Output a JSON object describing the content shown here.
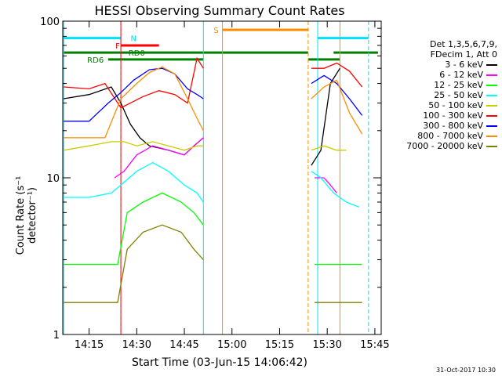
{
  "chart_data": {
    "type": "line",
    "title": "HESSI Observing Summary Count Rates",
    "xlabel": "Start Time (03-Jun-15 14:06:42)",
    "ylabel": "Count Rate (s⁻¹ detector⁻¹)",
    "yscale": "log",
    "ylim": [
      1,
      100
    ],
    "xlim": [
      "14:06:42",
      "15:47"
    ],
    "x_ticks": [
      "14:15",
      "14:30",
      "14:45",
      "15:00",
      "15:15",
      "15:30",
      "15:45"
    ],
    "y_tick_labels": [
      "100",
      "10",
      "1"
    ],
    "legend_header": [
      "Det 1,3,5,6,7,9,",
      "FDecim 1, Att 0"
    ],
    "legend_position": "right",
    "datestamp": "31-Oct-2017 10:30",
    "series": [
      {
        "name": "3 - 6 keV",
        "color": "#000000",
        "segments": [
          [
            [
              "14:07",
              32
            ],
            [
              "14:15",
              34
            ],
            [
              "14:22",
              38
            ],
            [
              "14:25",
              30
            ],
            [
              "14:28",
              22
            ],
            [
              "14:31",
              18
            ],
            [
              "14:34",
              16
            ],
            [
              "14:40",
              15
            ],
            [
              "14:45",
              14
            ],
            [
              "14:48",
              16
            ],
            [
              "14:51",
              18
            ]
          ],
          [
            [
              "15:25",
              12
            ],
            [
              "15:28",
              15
            ],
            [
              "15:31",
              40
            ],
            [
              "15:34",
              50
            ]
          ]
        ]
      },
      {
        "name": "6 - 12 keV",
        "color": "#ff00ff",
        "segments": [
          [
            [
              "14:23",
              10
            ],
            [
              "14:26",
              11
            ],
            [
              "14:30",
              14
            ],
            [
              "14:35",
              16
            ],
            [
              "14:40",
              15
            ],
            [
              "14:45",
              14
            ],
            [
              "14:48",
              16
            ],
            [
              "14:51",
              18
            ]
          ],
          [
            [
              "15:26",
              10
            ],
            [
              "15:29",
              10
            ],
            [
              "15:31",
              9
            ],
            [
              "15:33",
              8
            ]
          ]
        ]
      },
      {
        "name": "12 - 25 keV",
        "color": "#00ff00",
        "segments": [
          [
            [
              "14:07",
              2.8
            ],
            [
              "14:15",
              2.8
            ],
            [
              "14:24",
              2.8
            ],
            [
              "14:27",
              6
            ],
            [
              "14:32",
              7
            ],
            [
              "14:38",
              8
            ],
            [
              "14:44",
              7
            ],
            [
              "14:48",
              6
            ],
            [
              "14:51",
              5
            ]
          ],
          [
            [
              "15:26",
              2.8
            ],
            [
              "15:31",
              2.8
            ],
            [
              "15:37",
              2.8
            ],
            [
              "15:41",
              2.8
            ]
          ]
        ]
      },
      {
        "name": "25 - 50 keV",
        "color": "#00ffff",
        "segments": [
          [
            [
              "14:07",
              7.5
            ],
            [
              "14:15",
              7.5
            ],
            [
              "14:22",
              8
            ],
            [
              "14:25",
              9
            ],
            [
              "14:30",
              11
            ],
            [
              "14:35",
              12.5
            ],
            [
              "14:40",
              11
            ],
            [
              "14:45",
              9
            ],
            [
              "14:49",
              8
            ],
            [
              "14:51",
              7
            ]
          ],
          [
            [
              "15:25",
              11
            ],
            [
              "15:28",
              10
            ],
            [
              "15:32",
              8
            ],
            [
              "15:36",
              7
            ],
            [
              "15:40",
              6.5
            ]
          ]
        ]
      },
      {
        "name": "50 - 100 keV",
        "color": "#cccc00",
        "segments": [
          [
            [
              "14:07",
              15
            ],
            [
              "14:15",
              16
            ],
            [
              "14:22",
              17
            ],
            [
              "14:26",
              17
            ],
            [
              "14:30",
              16
            ],
            [
              "14:35",
              17
            ],
            [
              "14:40",
              16
            ],
            [
              "14:45",
              15
            ],
            [
              "14:49",
              16
            ],
            [
              "14:51",
              16
            ]
          ],
          [
            [
              "15:25",
              15
            ],
            [
              "15:29",
              16
            ],
            [
              "15:33",
              15
            ],
            [
              "15:36",
              15
            ]
          ]
        ]
      },
      {
        "name": "100 - 300 keV",
        "color": "#ff0000",
        "segments": [
          [
            [
              "14:07",
              38
            ],
            [
              "14:15",
              37
            ],
            [
              "14:20",
              40
            ],
            [
              "14:25",
              28
            ],
            [
              "14:28",
              30
            ],
            [
              "14:32",
              33
            ],
            [
              "14:37",
              36
            ],
            [
              "14:42",
              34
            ],
            [
              "14:46",
              30
            ],
            [
              "14:49",
              58
            ],
            [
              "14:51",
              50
            ]
          ],
          [
            [
              "15:25",
              50
            ],
            [
              "15:29",
              50
            ],
            [
              "15:33",
              54
            ],
            [
              "15:37",
              48
            ],
            [
              "15:41",
              38
            ]
          ]
        ]
      },
      {
        "name": "300 - 800 keV",
        "color": "#0000ff",
        "segments": [
          [
            [
              "14:07",
              23
            ],
            [
              "14:15",
              23
            ],
            [
              "14:21",
              30
            ],
            [
              "14:25",
              35
            ],
            [
              "14:29",
              42
            ],
            [
              "14:34",
              49
            ],
            [
              "14:38",
              50
            ],
            [
              "14:42",
              46
            ],
            [
              "14:46",
              37
            ],
            [
              "14:49",
              34
            ],
            [
              "14:51",
              32
            ]
          ],
          [
            [
              "15:25",
              40
            ],
            [
              "15:29",
              45
            ],
            [
              "15:33",
              40
            ],
            [
              "15:37",
              32
            ],
            [
              "15:41",
              25
            ]
          ]
        ]
      },
      {
        "name": "800 - 7000 keV",
        "color": "#ff8c00",
        "segments": [
          [
            [
              "14:07",
              18
            ],
            [
              "14:15",
              18
            ],
            [
              "14:20",
              18
            ],
            [
              "14:25",
              32
            ],
            [
              "14:30",
              40
            ],
            [
              "14:34",
              47
            ],
            [
              "14:38",
              51
            ],
            [
              "14:42",
              46
            ],
            [
              "14:46",
              32
            ],
            [
              "14:49",
              24
            ],
            [
              "14:51",
              20
            ]
          ],
          [
            [
              "15:25",
              32
            ],
            [
              "15:29",
              38
            ],
            [
              "15:33",
              42
            ],
            [
              "15:37",
              26
            ],
            [
              "15:41",
              19
            ]
          ]
        ]
      },
      {
        "name": "7000 - 20000 keV",
        "color": "#808000",
        "segments": [
          [
            [
              "14:07",
              1.6
            ],
            [
              "14:15",
              1.6
            ],
            [
              "14:24",
              1.6
            ],
            [
              "14:27",
              3.5
            ],
            [
              "14:32",
              4.5
            ],
            [
              "14:38",
              5
            ],
            [
              "14:44",
              4.5
            ],
            [
              "14:48",
              3.5
            ],
            [
              "14:51",
              3
            ]
          ],
          [
            [
              "15:26",
              1.6
            ],
            [
              "15:31",
              1.6
            ],
            [
              "15:37",
              1.6
            ],
            [
              "15:41",
              1.6
            ]
          ]
        ]
      }
    ],
    "flags": [
      {
        "label": "N",
        "color": "#00e0ff",
        "y": 78,
        "intervals": [
          [
            "14:07",
            "14:25"
          ],
          [
            "15:27",
            "15:43"
          ]
        ],
        "label_at": "14:29"
      },
      {
        "label": "F",
        "color": "#ff0000",
        "y": 70,
        "intervals": [
          [
            "14:25",
            "14:37"
          ]
        ],
        "label_at": "14:24"
      },
      {
        "label": "RD0",
        "color": "#008000",
        "y": 63,
        "intervals": [
          [
            "14:07",
            "15:24"
          ],
          [
            "15:32",
            "15:46"
          ]
        ],
        "label_at": "14:30"
      },
      {
        "label": "RD6",
        "color": "#008000",
        "y": 57,
        "intervals": [
          [
            "14:21",
            "14:51"
          ],
          [
            "15:24",
            "15:34"
          ]
        ],
        "label_at": "14:17"
      },
      {
        "label": "S",
        "color": "#ff8c00",
        "y": 88,
        "intervals": [
          [
            "14:57",
            "15:24"
          ]
        ],
        "label_at": "14:55"
      }
    ],
    "vlines": [
      {
        "time": "14:07",
        "color": "#00e0ff",
        "style": "solid"
      },
      {
        "time": "14:25",
        "color": "#00e0ff",
        "style": "dashed"
      },
      {
        "time": "14:25",
        "color": "#ff0000",
        "style": "solid"
      },
      {
        "time": "14:51",
        "color": "#00e0ff",
        "style": "solid"
      },
      {
        "time": "14:57",
        "color": "#ff8c00",
        "style": "solid"
      },
      {
        "time": "15:24",
        "color": "#ff8c00",
        "style": "dashed"
      },
      {
        "time": "15:27",
        "color": "#00e0ff",
        "style": "solid"
      },
      {
        "time": "15:34",
        "color": "#ff8c00",
        "style": "solid"
      },
      {
        "time": "15:43",
        "color": "#00e0ff",
        "style": "dashed"
      }
    ]
  }
}
